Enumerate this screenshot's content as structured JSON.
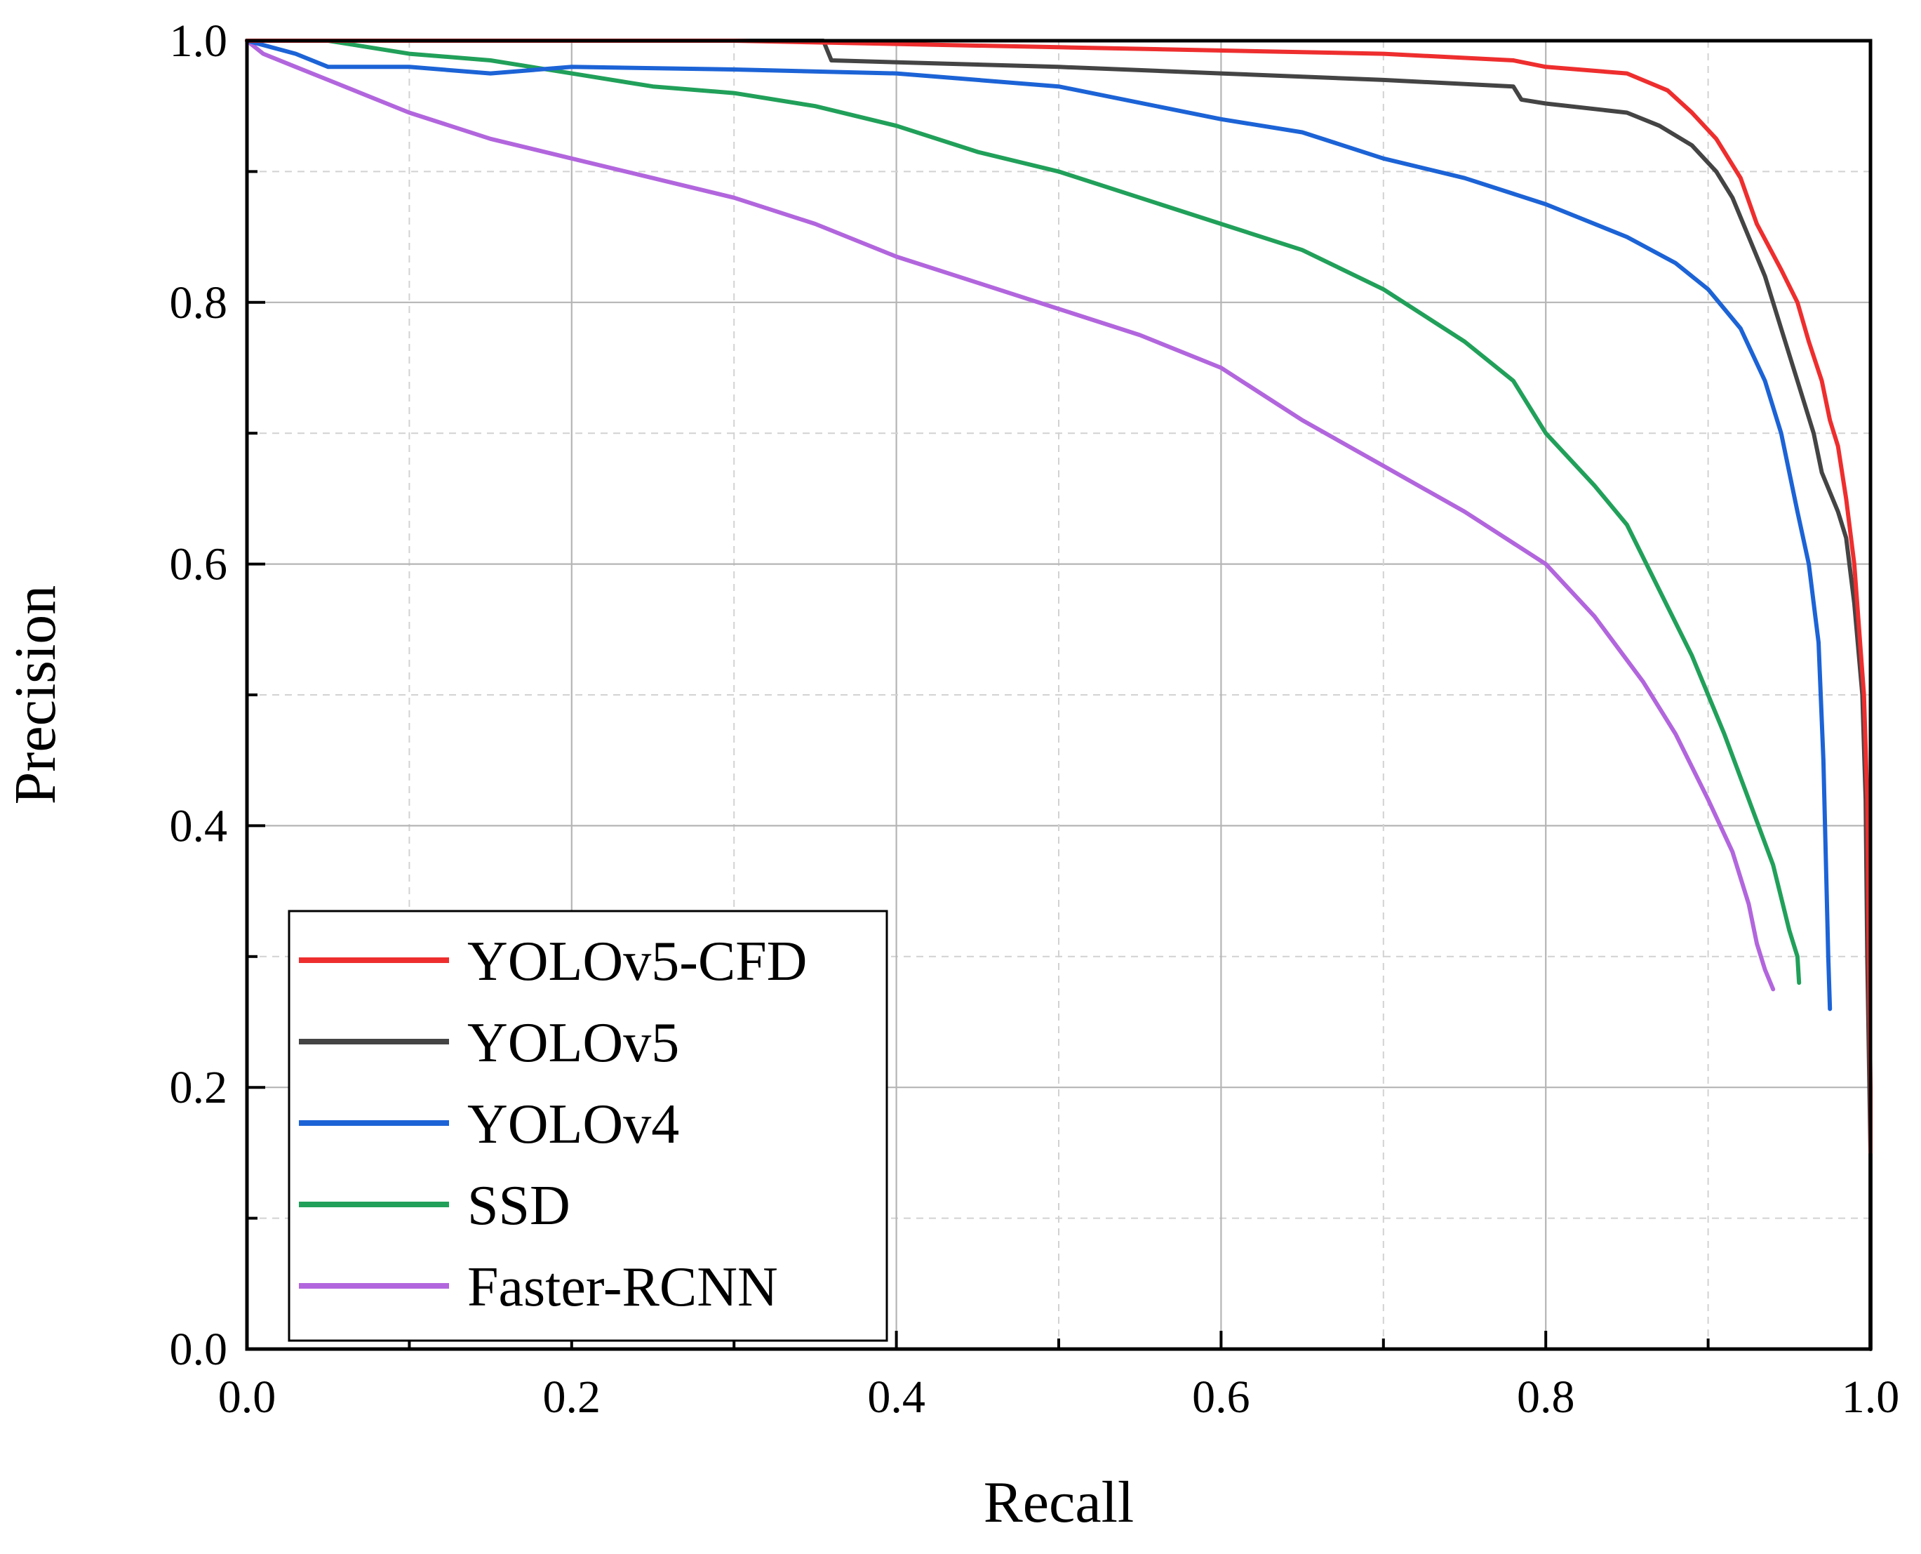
{
  "chart_data": {
    "type": "line",
    "title": "",
    "xlabel": "Recall",
    "ylabel": "Precision",
    "xlim": [
      0,
      1
    ],
    "ylim": [
      0,
      1
    ],
    "x_ticks": [
      0.0,
      0.2,
      0.4,
      0.6,
      0.8,
      1.0
    ],
    "y_ticks": [
      0.0,
      0.2,
      0.4,
      0.6,
      0.8,
      1.0
    ],
    "x_tick_labels": [
      "0.0",
      "0.2",
      "0.4",
      "0.6",
      "0.8",
      "1.0"
    ],
    "y_tick_labels": [
      "0.0",
      "0.2",
      "0.4",
      "0.6",
      "0.8",
      "1.0"
    ],
    "grid": "major solid, minor dashed",
    "legend_position": "bottom-left",
    "series": [
      {
        "name": "YOLOv5-CFD",
        "color": "#ee2e2e",
        "points": [
          [
            0.0,
            1.0
          ],
          [
            0.3,
            1.0
          ],
          [
            0.5,
            0.995
          ],
          [
            0.7,
            0.99
          ],
          [
            0.78,
            0.985
          ],
          [
            0.8,
            0.98
          ],
          [
            0.85,
            0.975
          ],
          [
            0.875,
            0.962
          ],
          [
            0.89,
            0.945
          ],
          [
            0.905,
            0.925
          ],
          [
            0.92,
            0.895
          ],
          [
            0.93,
            0.86
          ],
          [
            0.945,
            0.825
          ],
          [
            0.955,
            0.8
          ],
          [
            0.962,
            0.77
          ],
          [
            0.97,
            0.74
          ],
          [
            0.975,
            0.71
          ],
          [
            0.98,
            0.69
          ],
          [
            0.985,
            0.65
          ],
          [
            0.99,
            0.6
          ],
          [
            0.993,
            0.55
          ],
          [
            0.996,
            0.5
          ],
          [
            0.998,
            0.42
          ],
          [
            0.999,
            0.3
          ],
          [
            1.0,
            0.2
          ],
          [
            1.0,
            0.15
          ]
        ]
      },
      {
        "name": "YOLOv5",
        "color": "#444444",
        "points": [
          [
            0.0,
            1.0
          ],
          [
            0.355,
            1.0
          ],
          [
            0.36,
            0.985
          ],
          [
            0.5,
            0.98
          ],
          [
            0.6,
            0.975
          ],
          [
            0.7,
            0.97
          ],
          [
            0.78,
            0.965
          ],
          [
            0.785,
            0.955
          ],
          [
            0.8,
            0.952
          ],
          [
            0.85,
            0.945
          ],
          [
            0.87,
            0.935
          ],
          [
            0.89,
            0.92
          ],
          [
            0.905,
            0.9
          ],
          [
            0.915,
            0.88
          ],
          [
            0.925,
            0.85
          ],
          [
            0.935,
            0.82
          ],
          [
            0.945,
            0.78
          ],
          [
            0.955,
            0.74
          ],
          [
            0.965,
            0.7
          ],
          [
            0.97,
            0.67
          ],
          [
            0.98,
            0.64
          ],
          [
            0.985,
            0.62
          ],
          [
            0.99,
            0.57
          ],
          [
            0.995,
            0.5
          ],
          [
            0.997,
            0.42
          ],
          [
            0.998,
            0.3
          ],
          [
            1.0,
            0.15
          ],
          [
            1.0,
            0.0
          ]
        ]
      },
      {
        "name": "YOLOv4",
        "color": "#1c63d6",
        "points": [
          [
            0.0,
            1.0
          ],
          [
            0.03,
            0.99
          ],
          [
            0.05,
            0.98
          ],
          [
            0.1,
            0.98
          ],
          [
            0.15,
            0.975
          ],
          [
            0.2,
            0.98
          ],
          [
            0.3,
            0.978
          ],
          [
            0.4,
            0.975
          ],
          [
            0.5,
            0.965
          ],
          [
            0.6,
            0.94
          ],
          [
            0.65,
            0.93
          ],
          [
            0.7,
            0.91
          ],
          [
            0.75,
            0.895
          ],
          [
            0.8,
            0.875
          ],
          [
            0.85,
            0.85
          ],
          [
            0.88,
            0.83
          ],
          [
            0.9,
            0.81
          ],
          [
            0.92,
            0.78
          ],
          [
            0.935,
            0.74
          ],
          [
            0.945,
            0.7
          ],
          [
            0.955,
            0.64
          ],
          [
            0.962,
            0.6
          ],
          [
            0.968,
            0.54
          ],
          [
            0.971,
            0.45
          ],
          [
            0.973,
            0.35
          ],
          [
            0.974,
            0.3
          ],
          [
            0.975,
            0.26
          ]
        ]
      },
      {
        "name": "SSD",
        "color": "#21a05a",
        "points": [
          [
            0.0,
            1.0
          ],
          [
            0.05,
            1.0
          ],
          [
            0.1,
            0.99
          ],
          [
            0.15,
            0.985
          ],
          [
            0.2,
            0.975
          ],
          [
            0.25,
            0.965
          ],
          [
            0.3,
            0.96
          ],
          [
            0.35,
            0.95
          ],
          [
            0.4,
            0.935
          ],
          [
            0.45,
            0.915
          ],
          [
            0.5,
            0.9
          ],
          [
            0.55,
            0.88
          ],
          [
            0.6,
            0.86
          ],
          [
            0.65,
            0.84
          ],
          [
            0.7,
            0.81
          ],
          [
            0.75,
            0.77
          ],
          [
            0.78,
            0.74
          ],
          [
            0.8,
            0.7
          ],
          [
            0.83,
            0.66
          ],
          [
            0.85,
            0.63
          ],
          [
            0.87,
            0.58
          ],
          [
            0.89,
            0.53
          ],
          [
            0.91,
            0.47
          ],
          [
            0.925,
            0.42
          ],
          [
            0.94,
            0.37
          ],
          [
            0.95,
            0.32
          ],
          [
            0.955,
            0.3
          ],
          [
            0.956,
            0.28
          ]
        ]
      },
      {
        "name": "Faster-RCNN",
        "color": "#b266dd",
        "points": [
          [
            0.0,
            1.0
          ],
          [
            0.01,
            0.99
          ],
          [
            0.03,
            0.98
          ],
          [
            0.05,
            0.97
          ],
          [
            0.1,
            0.945
          ],
          [
            0.15,
            0.925
          ],
          [
            0.2,
            0.91
          ],
          [
            0.25,
            0.895
          ],
          [
            0.3,
            0.88
          ],
          [
            0.35,
            0.86
          ],
          [
            0.4,
            0.835
          ],
          [
            0.45,
            0.815
          ],
          [
            0.5,
            0.795
          ],
          [
            0.55,
            0.775
          ],
          [
            0.6,
            0.75
          ],
          [
            0.65,
            0.71
          ],
          [
            0.7,
            0.675
          ],
          [
            0.75,
            0.64
          ],
          [
            0.8,
            0.6
          ],
          [
            0.83,
            0.56
          ],
          [
            0.86,
            0.51
          ],
          [
            0.88,
            0.47
          ],
          [
            0.9,
            0.42
          ],
          [
            0.915,
            0.38
          ],
          [
            0.925,
            0.34
          ],
          [
            0.93,
            0.31
          ],
          [
            0.935,
            0.29
          ],
          [
            0.94,
            0.275
          ]
        ]
      }
    ]
  }
}
